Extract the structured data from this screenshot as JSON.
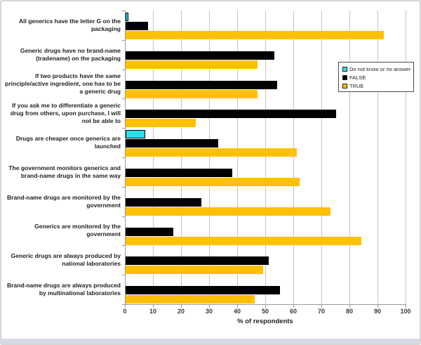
{
  "axis": {
    "xlabel": "% of respondents"
  },
  "legend": {
    "items": [
      {
        "label": "Do not know or no answer",
        "color": "#29dfe9"
      },
      {
        "label": "FALSE",
        "color": "#000000"
      },
      {
        "label": "TRUE",
        "color": "#ffc000"
      }
    ]
  },
  "chart_data": {
    "type": "bar",
    "orientation": "horizontal",
    "title": "",
    "xlabel": "% of respondents",
    "ylabel": "",
    "xlim": [
      0,
      100
    ],
    "x_ticks": [
      0,
      10,
      20,
      30,
      40,
      50,
      60,
      70,
      80,
      90,
      100
    ],
    "grid": true,
    "legend_position": "right",
    "categories": [
      "All generics have the letter G on the packaging",
      "Generic drugs have no brand-name (tradename) on the packaging",
      "If two products have the same principle/active ingredient, one has to be a generic drug",
      "If you ask me to differentiate a generic drug from others, upon purchase, I will not be able to",
      "Drugs are cheaper once generics are launched",
      "The government monitors generics and brand-name drugs in the same way",
      "Brand-name drugs are monitored by the government",
      "Generics are monitored by the government",
      "Generic drugs are always produced by national laboratories",
      "Brand-name drugs are always produced by multinational laboratories"
    ],
    "series": [
      {
        "name": "Do not know or no answer",
        "color": "#29dfe9",
        "border": "#000000",
        "values": [
          1,
          0,
          0,
          0,
          7,
          0,
          0,
          0,
          0,
          0
        ]
      },
      {
        "name": "FALSE",
        "color": "#000000",
        "border": "#000000",
        "values": [
          8,
          53,
          54,
          75,
          33,
          38,
          27,
          17,
          51,
          55
        ]
      },
      {
        "name": "TRUE",
        "color": "#ffc000",
        "border": "#ffc000",
        "values": [
          92,
          47,
          47,
          25,
          61,
          62,
          73,
          84,
          49,
          46
        ]
      }
    ]
  }
}
